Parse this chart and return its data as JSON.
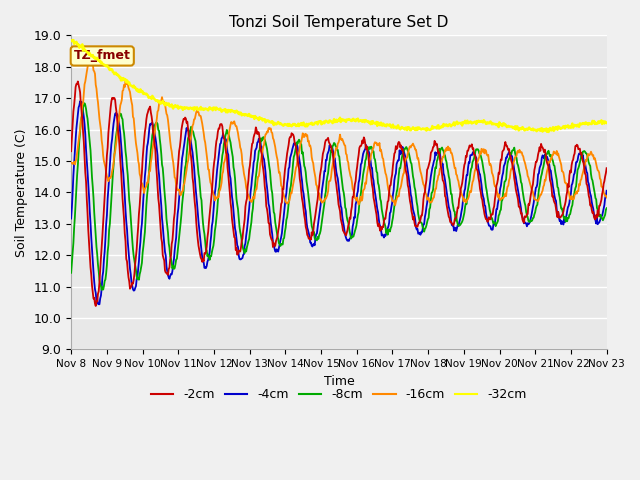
{
  "title": "Tonzi Soil Temperature Set D",
  "xlabel": "Time",
  "ylabel": "Soil Temperature (C)",
  "ylim": [
    9.0,
    19.0
  ],
  "yticks": [
    9.0,
    10.0,
    11.0,
    12.0,
    13.0,
    14.0,
    15.0,
    16.0,
    17.0,
    18.0,
    19.0
  ],
  "xtick_labels": [
    "Nov 8",
    "Nov 9",
    "Nov 10",
    "Nov 11",
    "Nov 12",
    "Nov 13",
    "Nov 14",
    "Nov 15",
    "Nov 16",
    "Nov 17",
    "Nov 18",
    "Nov 19",
    "Nov 20",
    "Nov 21",
    "Nov 22",
    "Nov 23"
  ],
  "legend_labels": [
    "-2cm",
    "-4cm",
    "-8cm",
    "-16cm",
    "-32cm"
  ],
  "colors": {
    "-2cm": "#cc0000",
    "-4cm": "#0000cc",
    "-8cm": "#00aa00",
    "-16cm": "#ff8800",
    "-32cm": "#ffff00"
  },
  "annotation_text": "TZ_fmet",
  "annotation_color": "#880000",
  "annotation_bg": "#ffffcc",
  "annotation_border": "#cc8800",
  "fig_bg": "#f0f0f0",
  "plot_bg": "#e8e8e8",
  "grid_color": "#ffffff"
}
